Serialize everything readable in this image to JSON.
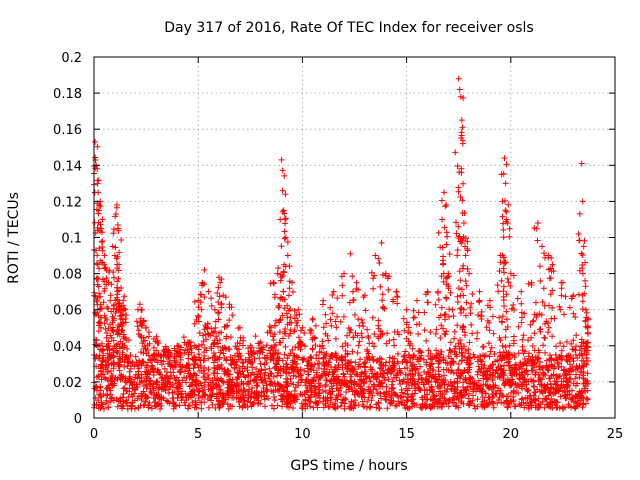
{
  "chart_data": {
    "type": "scatter",
    "title": "Day 317 of 2016, Rate Of TEC Index for receiver osls",
    "xlabel": "GPS time / hours",
    "ylabel": "ROTI / TECUs",
    "xlim": [
      0,
      25
    ],
    "ylim": [
      0,
      0.2
    ],
    "x_ticks": [
      0,
      5,
      10,
      15,
      20,
      25
    ],
    "y_ticks": [
      0,
      0.02,
      0.04,
      0.06,
      0.08,
      0.1,
      0.12,
      0.14,
      0.16,
      0.18,
      0.2
    ],
    "x_tick_labels": [
      "0",
      "5",
      "10",
      "15",
      "20",
      "25"
    ],
    "y_tick_labels": [
      "0",
      "0.02",
      "0.04",
      "0.06",
      "0.08",
      "0.1",
      "0.12",
      "0.14",
      "0.16",
      "0.18",
      "0.2"
    ],
    "grid": true,
    "marker": "+",
    "series_color": "#ff0000",
    "data_x_range": [
      0,
      23.7
    ],
    "baseline_band": [
      0.005,
      0.035
    ],
    "series": [
      {
        "name": "ROTI",
        "points": [
          [
            0.05,
            0.153
          ],
          [
            0.1,
            0.14
          ],
          [
            0.15,
            0.138
          ],
          [
            0.2,
            0.125
          ],
          [
            0.25,
            0.118
          ],
          [
            0.3,
            0.12
          ],
          [
            0.35,
            0.105
          ],
          [
            0.4,
            0.098
          ],
          [
            0.5,
            0.09
          ],
          [
            0.6,
            0.082
          ],
          [
            0.7,
            0.075
          ],
          [
            0.8,
            0.068
          ],
          [
            0.9,
            0.095
          ],
          [
            1.0,
            0.09
          ],
          [
            1.05,
            0.113
          ],
          [
            1.1,
            0.118
          ],
          [
            1.15,
            0.105
          ],
          [
            1.2,
            0.085
          ],
          [
            1.3,
            0.072
          ],
          [
            1.4,
            0.065
          ],
          [
            1.5,
            0.06
          ],
          [
            2.2,
            0.063
          ],
          [
            2.3,
            0.06
          ],
          [
            2.5,
            0.05
          ],
          [
            3.0,
            0.045
          ],
          [
            3.5,
            0.038
          ],
          [
            4.0,
            0.04
          ],
          [
            4.5,
            0.042
          ],
          [
            5.0,
            0.065
          ],
          [
            5.2,
            0.075
          ],
          [
            5.3,
            0.082
          ],
          [
            5.5,
            0.07
          ],
          [
            5.8,
            0.06
          ],
          [
            6.0,
            0.078
          ],
          [
            6.2,
            0.068
          ],
          [
            6.5,
            0.063
          ],
          [
            7.0,
            0.05
          ],
          [
            7.5,
            0.04
          ],
          [
            8.0,
            0.042
          ],
          [
            8.5,
            0.05
          ],
          [
            8.6,
            0.075
          ],
          [
            8.8,
            0.08
          ],
          [
            9.0,
            0.143
          ],
          [
            9.05,
            0.126
          ],
          [
            9.1,
            0.115
          ],
          [
            9.2,
            0.1
          ],
          [
            9.3,
            0.09
          ],
          [
            9.5,
            0.075
          ],
          [
            9.8,
            0.06
          ],
          [
            10.0,
            0.05
          ],
          [
            10.5,
            0.055
          ],
          [
            11.0,
            0.065
          ],
          [
            11.5,
            0.07
          ],
          [
            12.0,
            0.08
          ],
          [
            12.3,
            0.091
          ],
          [
            12.6,
            0.075
          ],
          [
            13.0,
            0.068
          ],
          [
            13.5,
            0.09
          ],
          [
            13.8,
            0.097
          ],
          [
            14.0,
            0.08
          ],
          [
            14.5,
            0.07
          ],
          [
            15.0,
            0.06
          ],
          [
            15.5,
            0.065
          ],
          [
            16.0,
            0.07
          ],
          [
            16.5,
            0.07
          ],
          [
            16.7,
            0.11
          ],
          [
            16.8,
            0.125
          ],
          [
            16.9,
            0.118
          ],
          [
            17.0,
            0.08
          ],
          [
            17.2,
            0.06
          ],
          [
            17.5,
            0.188
          ],
          [
            17.55,
            0.182
          ],
          [
            17.6,
            0.178
          ],
          [
            17.65,
            0.165
          ],
          [
            17.7,
            0.152
          ],
          [
            17.75,
            0.108
          ],
          [
            17.8,
            0.095
          ],
          [
            18.0,
            0.08
          ],
          [
            18.5,
            0.07
          ],
          [
            19.0,
            0.065
          ],
          [
            19.5,
            0.09
          ],
          [
            19.6,
            0.12
          ],
          [
            19.7,
            0.144
          ],
          [
            19.75,
            0.13
          ],
          [
            19.8,
            0.11
          ],
          [
            20.0,
            0.08
          ],
          [
            20.5,
            0.07
          ],
          [
            21.0,
            0.075
          ],
          [
            21.3,
            0.108
          ],
          [
            21.5,
            0.095
          ],
          [
            21.8,
            0.09
          ],
          [
            22.0,
            0.085
          ],
          [
            22.5,
            0.075
          ],
          [
            23.0,
            0.068
          ],
          [
            23.4,
            0.141
          ],
          [
            23.45,
            0.12
          ],
          [
            23.5,
            0.095
          ],
          [
            23.6,
            0.06
          ],
          [
            23.7,
            0.055
          ]
        ]
      }
    ]
  }
}
